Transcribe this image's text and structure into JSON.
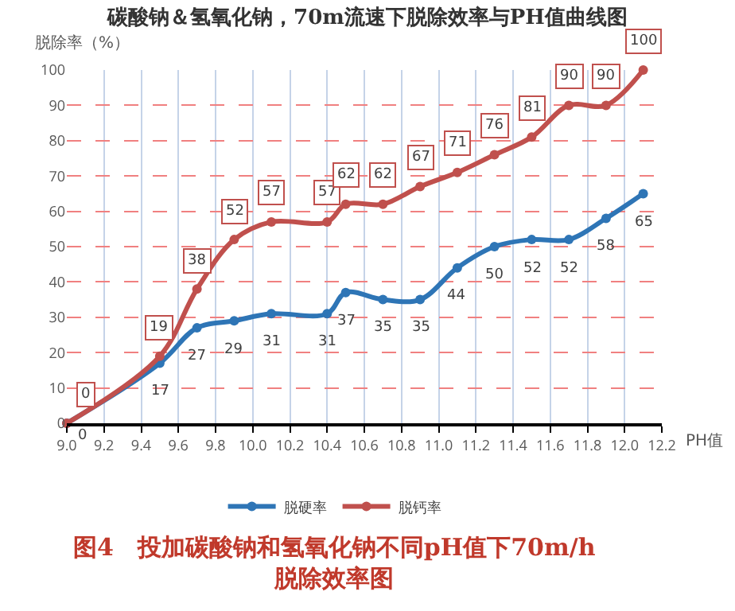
{
  "chart_data": {
    "type": "line",
    "title": "碳酸钠＆氢氧化钠，70m流速下脱除效率与PH值曲线图",
    "xlabel": "PH值",
    "ylabel": "脱除率（%）",
    "x": [
      9.0,
      9.5,
      9.7,
      9.9,
      10.1,
      10.4,
      10.5,
      10.7,
      10.9,
      11.1,
      11.3,
      11.5,
      11.7,
      11.9,
      12.1
    ],
    "series": [
      {
        "name": "脱硬率",
        "color": "#2e75b6",
        "values": [
          0,
          17,
          27,
          29,
          31,
          31,
          37,
          35,
          35,
          44,
          50,
          52,
          52,
          58,
          65
        ]
      },
      {
        "name": "脱钙率",
        "color": "#c0504d",
        "values": [
          0,
          19,
          38,
          52,
          57,
          57,
          62,
          62,
          67,
          71,
          76,
          81,
          90,
          90,
          100
        ]
      }
    ],
    "xlim": [
      9.0,
      12.2
    ],
    "xticks": [
      {
        "value": 9.0,
        "label": "9.0"
      },
      9.2,
      9.4,
      9.6,
      9.8,
      {
        "value": 10.0,
        "label": "10.0"
      },
      10.2,
      10.4,
      10.6,
      10.8,
      {
        "value": 11.0,
        "label": "11.0"
      },
      11.2,
      11.4,
      11.6,
      11.8,
      {
        "value": 12.0,
        "label": "12.0"
      },
      12.2
    ],
    "ylim": [
      0,
      100
    ],
    "yticks": [
      0,
      10,
      20,
      30,
      40,
      50,
      60,
      70,
      80,
      90,
      100
    ],
    "grid": true,
    "legend": "bottom",
    "marker": "circle",
    "line_style": "solid",
    "data_labels": true,
    "annotations": [
      "图4　投加碳酸钠和氢氧化钠不同pH值下70m/h\n脱除效率图"
    ]
  }
}
